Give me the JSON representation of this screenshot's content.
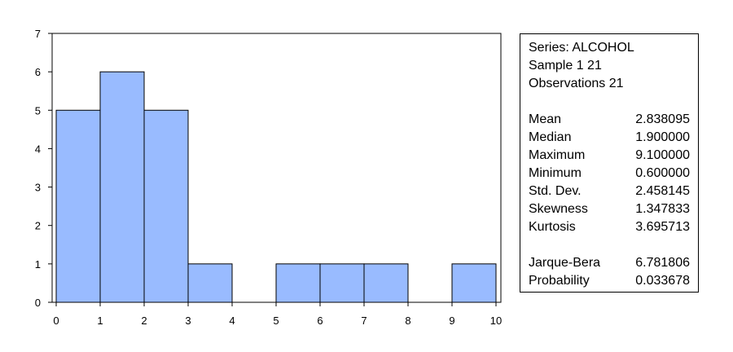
{
  "chart_data": {
    "type": "bar",
    "bins": [
      {
        "from": 0,
        "to": 1,
        "count": 5
      },
      {
        "from": 1,
        "to": 2,
        "count": 6
      },
      {
        "from": 2,
        "to": 3,
        "count": 5
      },
      {
        "from": 3,
        "to": 4,
        "count": 1
      },
      {
        "from": 4,
        "to": 5,
        "count": 0
      },
      {
        "from": 5,
        "to": 6,
        "count": 1
      },
      {
        "from": 6,
        "to": 7,
        "count": 1
      },
      {
        "from": 7,
        "to": 8,
        "count": 1
      },
      {
        "from": 8,
        "to": 9,
        "count": 0
      },
      {
        "from": 9,
        "to": 10,
        "count": 1
      }
    ],
    "xlim": [
      0,
      10
    ],
    "ylim": [
      0,
      7
    ],
    "xticks": [
      "0",
      "1",
      "2",
      "3",
      "4",
      "5",
      "6",
      "7",
      "8",
      "9",
      "10"
    ],
    "yticks": [
      "0",
      "1",
      "2",
      "3",
      "4",
      "5",
      "6",
      "7"
    ],
    "grid": false,
    "bar_color": "#99bbff",
    "edge_color": "#000000"
  },
  "stats": {
    "header": [
      "Series: ALCOHOL",
      "Sample 1 21",
      "Observations 21"
    ],
    "rows": [
      {
        "label": "Mean",
        "value": "2.838095"
      },
      {
        "label": "Median",
        "value": "1.900000"
      },
      {
        "label": "Maximum",
        "value": "9.100000"
      },
      {
        "label": "Minimum",
        "value": "0.600000"
      },
      {
        "label": "Std. Dev.",
        "value": "2.458145"
      },
      {
        "label": "Skewness",
        "value": "1.347833"
      },
      {
        "label": "Kurtosis",
        "value": "3.695713"
      }
    ],
    "tests": [
      {
        "label": "Jarque-Bera",
        "value": "6.781806"
      },
      {
        "label": "Probability",
        "value": "0.033678"
      }
    ]
  }
}
